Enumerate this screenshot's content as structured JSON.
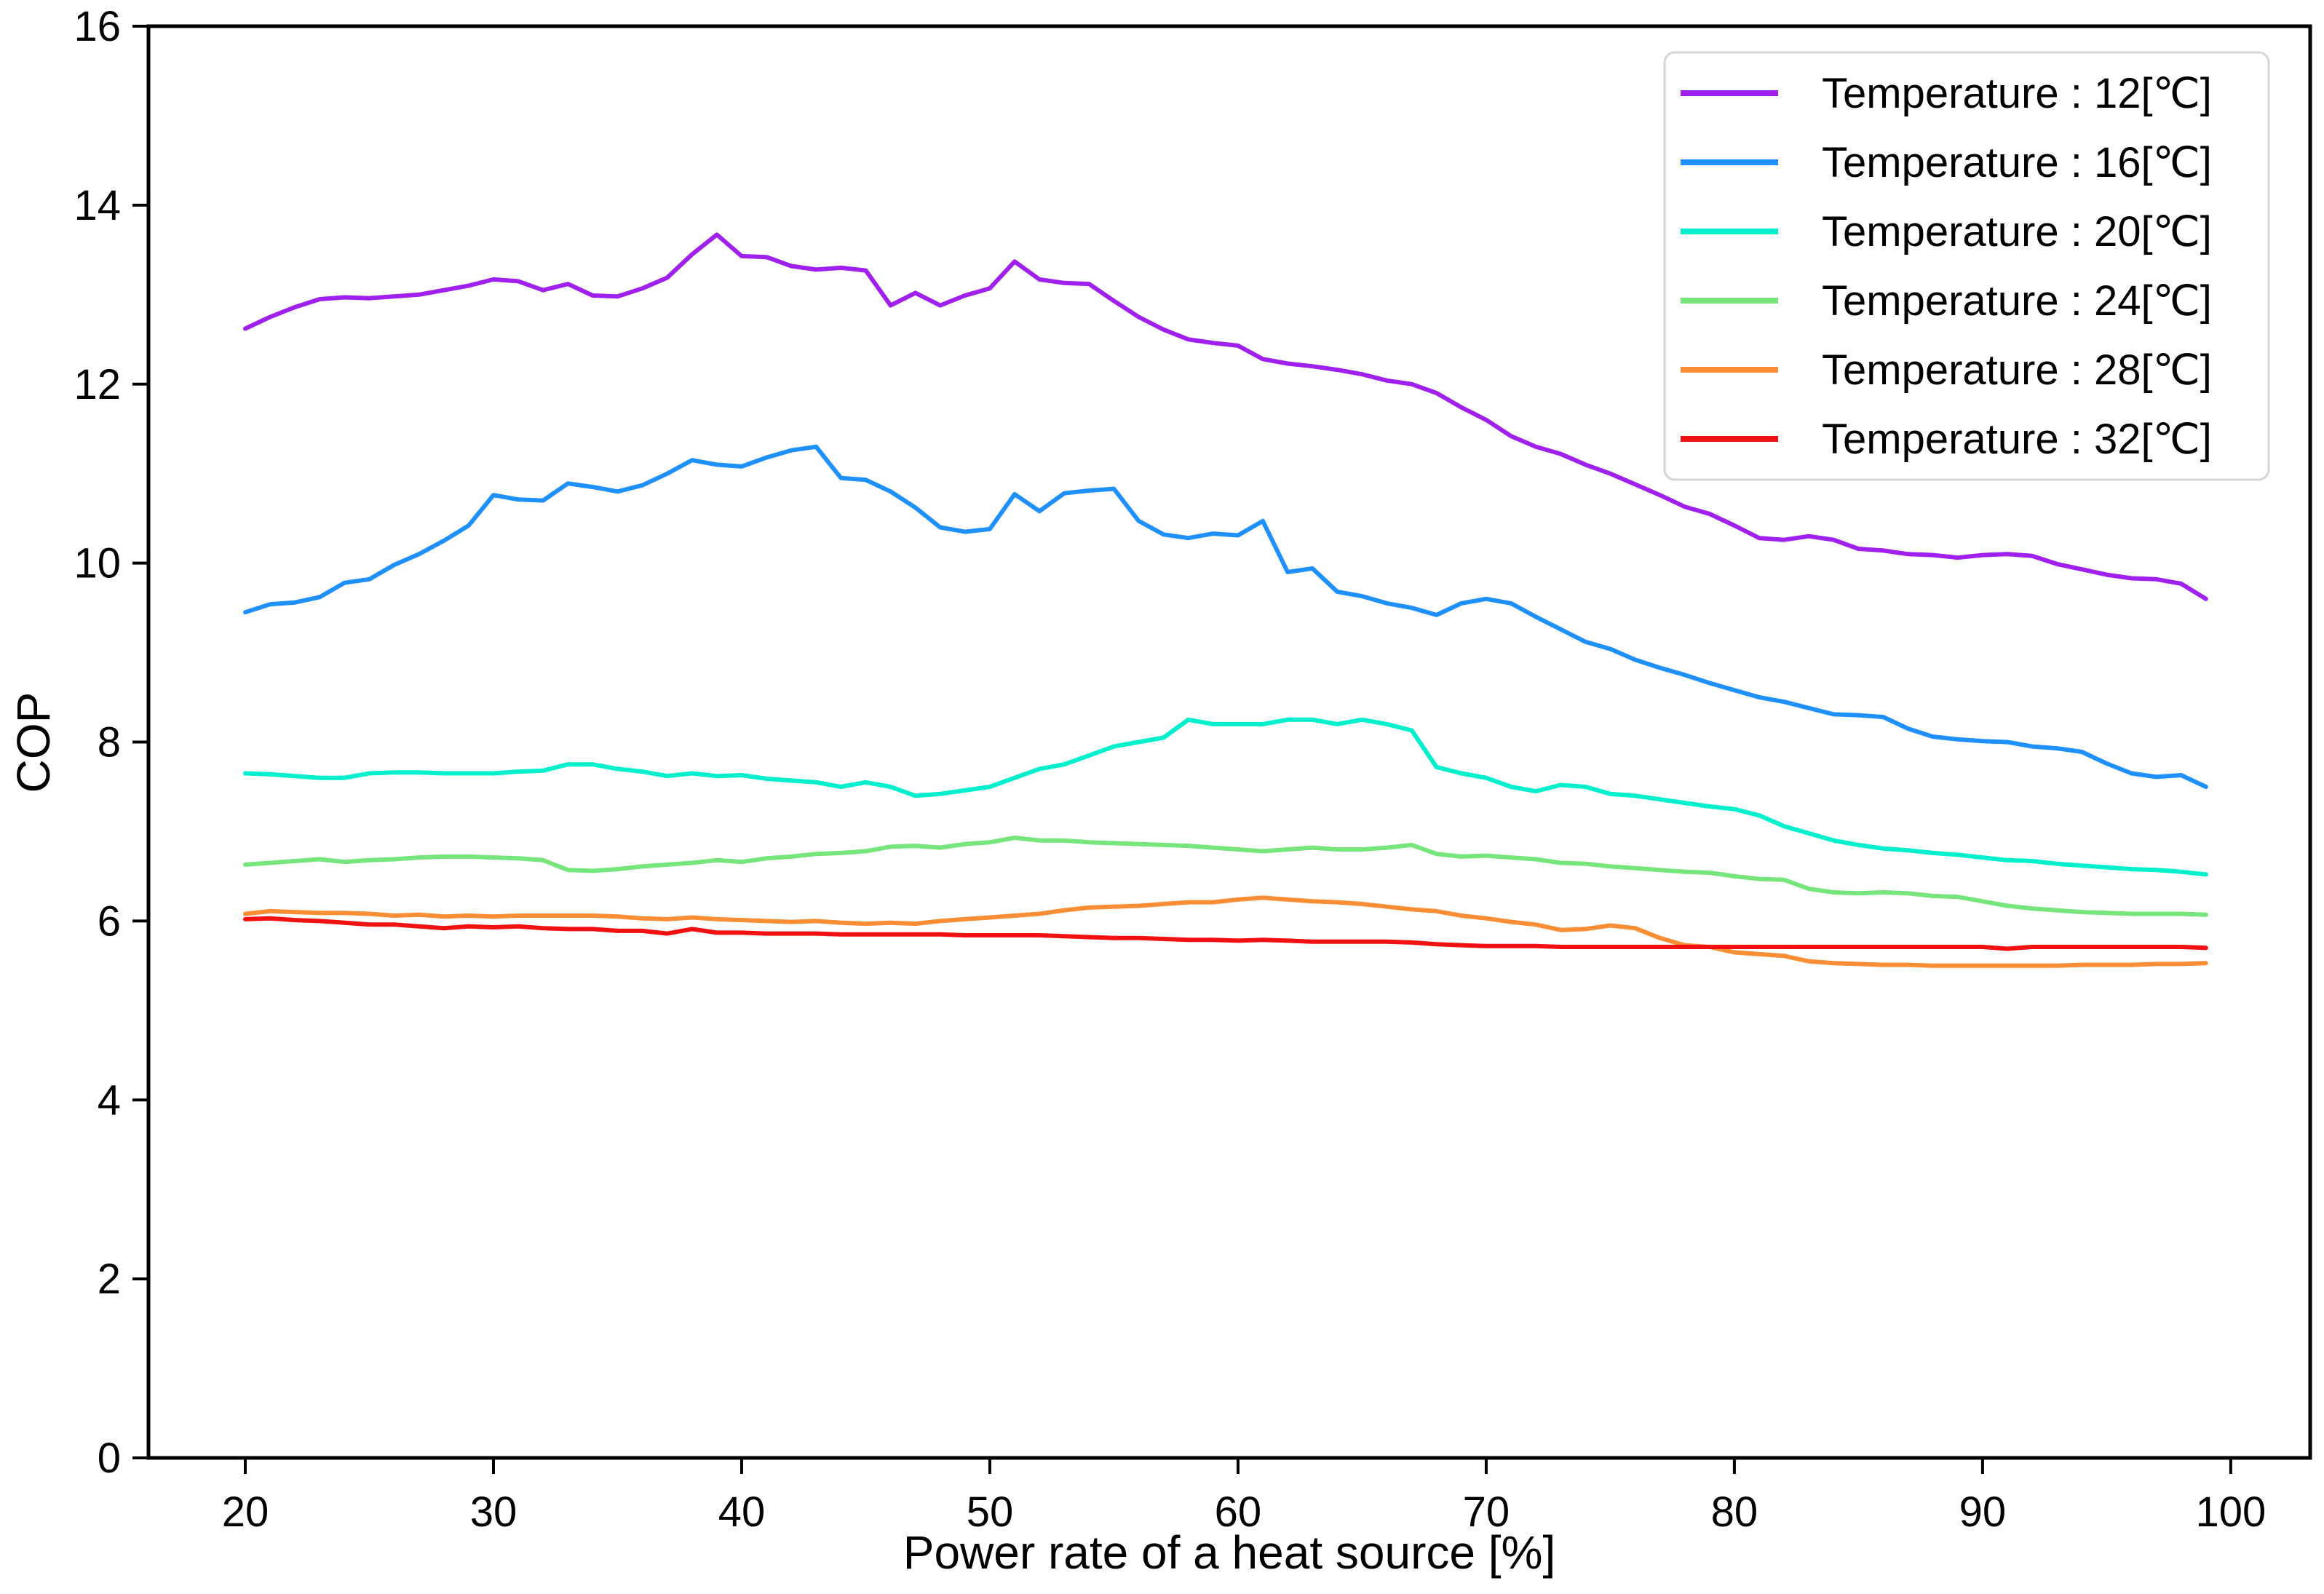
{
  "chart_data": {
    "type": "line",
    "title": "",
    "xlabel": "Power rate of a heat source [%]",
    "ylabel": "COP",
    "xlim": [
      16.1,
      103.2
    ],
    "ylim": [
      0,
      16
    ],
    "x_ticks": [
      20,
      30,
      40,
      50,
      60,
      70,
      80,
      90,
      100
    ],
    "y_ticks": [
      0,
      2,
      4,
      6,
      8,
      10,
      12,
      14,
      16
    ],
    "grid": false,
    "legend_position": "upper right",
    "x": [
      20,
      21,
      22,
      23,
      24,
      25,
      26,
      27,
      28,
      29,
      30,
      31,
      32,
      33,
      34,
      35,
      36,
      37,
      38,
      39,
      40,
      41,
      42,
      43,
      44,
      45,
      46,
      47,
      48,
      49,
      50,
      51,
      52,
      53,
      54,
      55,
      56,
      57,
      58,
      59,
      60,
      61,
      62,
      63,
      64,
      65,
      66,
      67,
      68,
      69,
      70,
      71,
      72,
      73,
      74,
      75,
      76,
      77,
      78,
      79,
      80,
      81,
      82,
      83,
      84,
      85,
      86,
      87,
      88,
      89,
      90,
      91,
      92,
      93,
      94,
      95,
      96,
      97,
      98,
      99
    ],
    "series": [
      {
        "name": "Temperature : 12[℃]",
        "color": "#A020F0",
        "values": [
          12.62,
          12.75,
          12.86,
          12.95,
          12.97,
          12.96,
          12.98,
          13.0,
          13.05,
          13.1,
          13.17,
          13.15,
          13.05,
          13.12,
          12.99,
          12.98,
          13.07,
          13.19,
          13.45,
          13.67,
          13.43,
          13.42,
          13.32,
          13.28,
          13.3,
          13.27,
          12.88,
          13.02,
          12.88,
          12.99,
          13.07,
          13.37,
          13.17,
          13.13,
          13.12,
          12.93,
          12.75,
          12.61,
          12.5,
          12.46,
          12.43,
          12.28,
          12.23,
          12.2,
          12.16,
          12.11,
          12.04,
          12.0,
          11.9,
          11.74,
          11.6,
          11.42,
          11.3,
          11.22,
          11.1,
          11.0,
          10.88,
          10.76,
          10.63,
          10.55,
          10.42,
          10.28,
          10.26,
          10.3,
          10.26,
          10.16,
          10.14,
          10.1,
          10.09,
          10.06,
          10.09,
          10.1,
          10.08,
          9.99,
          9.93,
          9.87,
          9.83,
          9.82,
          9.77,
          9.6
        ]
      },
      {
        "name": "Temperature : 16[℃]",
        "color": "#1E90FF",
        "values": [
          9.45,
          9.54,
          9.56,
          9.62,
          9.78,
          9.82,
          9.98,
          10.1,
          10.25,
          10.42,
          10.76,
          10.71,
          10.7,
          10.89,
          10.85,
          10.8,
          10.87,
          11.0,
          11.15,
          11.1,
          11.08,
          11.18,
          11.26,
          11.3,
          10.95,
          10.93,
          10.8,
          10.62,
          10.4,
          10.35,
          10.38,
          10.77,
          10.58,
          10.78,
          10.81,
          10.83,
          10.47,
          10.32,
          10.28,
          10.33,
          10.31,
          10.47,
          9.9,
          9.94,
          9.68,
          9.63,
          9.55,
          9.5,
          9.42,
          9.55,
          9.6,
          9.55,
          9.4,
          9.26,
          9.12,
          9.04,
          8.92,
          8.83,
          8.75,
          8.66,
          8.58,
          8.5,
          8.45,
          8.38,
          8.31,
          8.3,
          8.28,
          8.15,
          8.06,
          8.03,
          8.01,
          8.0,
          7.95,
          7.93,
          7.89,
          7.76,
          7.65,
          7.61,
          7.63,
          7.5
        ]
      },
      {
        "name": "Temperature : 20[℃]",
        "color": "#00F0CE",
        "values": [
          7.65,
          7.64,
          7.62,
          7.6,
          7.6,
          7.65,
          7.66,
          7.66,
          7.65,
          7.65,
          7.65,
          7.67,
          7.68,
          7.75,
          7.75,
          7.7,
          7.67,
          7.62,
          7.65,
          7.62,
          7.63,
          7.59,
          7.57,
          7.55,
          7.5,
          7.55,
          7.5,
          7.4,
          7.42,
          7.46,
          7.5,
          7.6,
          7.7,
          7.75,
          7.85,
          7.95,
          8.0,
          8.05,
          8.25,
          8.2,
          8.2,
          8.2,
          8.25,
          8.25,
          8.2,
          8.25,
          8.2,
          8.13,
          7.72,
          7.65,
          7.6,
          7.5,
          7.45,
          7.52,
          7.5,
          7.42,
          7.4,
          7.36,
          7.32,
          7.28,
          7.25,
          7.18,
          7.06,
          6.98,
          6.9,
          6.85,
          6.81,
          6.79,
          6.76,
          6.74,
          6.71,
          6.68,
          6.67,
          6.64,
          6.62,
          6.6,
          6.58,
          6.57,
          6.55,
          6.52
        ]
      },
      {
        "name": "Temperature : 24[℃]",
        "color": "#76E57B",
        "values": [
          6.63,
          6.65,
          6.67,
          6.69,
          6.66,
          6.68,
          6.69,
          6.71,
          6.72,
          6.72,
          6.71,
          6.7,
          6.68,
          6.57,
          6.56,
          6.58,
          6.61,
          6.63,
          6.65,
          6.68,
          6.66,
          6.7,
          6.72,
          6.75,
          6.76,
          6.78,
          6.83,
          6.84,
          6.82,
          6.86,
          6.88,
          6.93,
          6.9,
          6.9,
          6.88,
          6.87,
          6.86,
          6.85,
          6.84,
          6.82,
          6.8,
          6.78,
          6.8,
          6.82,
          6.8,
          6.8,
          6.82,
          6.85,
          6.75,
          6.72,
          6.73,
          6.71,
          6.69,
          6.65,
          6.64,
          6.61,
          6.59,
          6.57,
          6.55,
          6.54,
          6.5,
          6.47,
          6.46,
          6.36,
          6.32,
          6.31,
          6.32,
          6.31,
          6.28,
          6.27,
          6.22,
          6.17,
          6.14,
          6.12,
          6.1,
          6.09,
          6.08,
          6.08,
          6.08,
          6.07
        ]
      },
      {
        "name": "Temperature : 28[℃]",
        "color": "#FB8E34",
        "values": [
          6.08,
          6.11,
          6.1,
          6.09,
          6.09,
          6.08,
          6.06,
          6.07,
          6.05,
          6.06,
          6.05,
          6.06,
          6.06,
          6.06,
          6.06,
          6.05,
          6.03,
          6.02,
          6.04,
          6.02,
          6.01,
          6.0,
          5.99,
          6.0,
          5.98,
          5.97,
          5.98,
          5.97,
          6.0,
          6.02,
          6.04,
          6.06,
          6.08,
          6.12,
          6.15,
          6.16,
          6.17,
          6.19,
          6.21,
          6.21,
          6.24,
          6.26,
          6.24,
          6.22,
          6.21,
          6.19,
          6.16,
          6.13,
          6.11,
          6.06,
          6.03,
          5.99,
          5.96,
          5.9,
          5.91,
          5.95,
          5.92,
          5.81,
          5.73,
          5.71,
          5.65,
          5.63,
          5.61,
          5.55,
          5.53,
          5.52,
          5.51,
          5.51,
          5.5,
          5.5,
          5.5,
          5.5,
          5.5,
          5.5,
          5.51,
          5.51,
          5.51,
          5.52,
          5.52,
          5.53
        ]
      },
      {
        "name": "Temperature : 32[℃]",
        "color": "#F21111",
        "values": [
          6.02,
          6.03,
          6.01,
          6.0,
          5.98,
          5.96,
          5.96,
          5.94,
          5.92,
          5.94,
          5.93,
          5.94,
          5.92,
          5.91,
          5.91,
          5.89,
          5.89,
          5.86,
          5.91,
          5.87,
          5.87,
          5.86,
          5.86,
          5.86,
          5.85,
          5.85,
          5.85,
          5.85,
          5.85,
          5.84,
          5.84,
          5.84,
          5.84,
          5.83,
          5.82,
          5.81,
          5.81,
          5.8,
          5.79,
          5.79,
          5.78,
          5.79,
          5.78,
          5.77,
          5.77,
          5.77,
          5.77,
          5.76,
          5.74,
          5.73,
          5.72,
          5.72,
          5.72,
          5.71,
          5.71,
          5.71,
          5.71,
          5.71,
          5.71,
          5.71,
          5.71,
          5.71,
          5.71,
          5.71,
          5.71,
          5.71,
          5.71,
          5.71,
          5.71,
          5.71,
          5.71,
          5.69,
          5.71,
          5.71,
          5.71,
          5.71,
          5.71,
          5.71,
          5.71,
          5.7
        ]
      }
    ],
    "axis_color": "#000000",
    "background_color": "#FFFFFF",
    "legend_border_color": "#D5D5D5"
  }
}
